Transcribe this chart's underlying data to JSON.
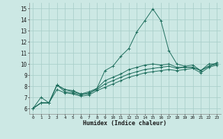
{
  "title": "",
  "xlabel": "Humidex (Indice chaleur)",
  "ylabel": "",
  "background_color": "#cce8e4",
  "grid_color": "#aacfca",
  "line_color": "#1a6b5a",
  "xlim": [
    -0.5,
    23.5
  ],
  "ylim": [
    5.5,
    15.5
  ],
  "xticks": [
    0,
    1,
    2,
    3,
    4,
    5,
    6,
    7,
    8,
    9,
    10,
    11,
    12,
    13,
    14,
    15,
    16,
    17,
    18,
    19,
    20,
    21,
    22,
    23
  ],
  "yticks": [
    6,
    7,
    8,
    9,
    10,
    11,
    12,
    13,
    14,
    15
  ],
  "series": [
    [
      6.0,
      7.0,
      6.5,
      8.1,
      7.7,
      7.6,
      7.3,
      7.3,
      7.8,
      9.4,
      9.8,
      10.7,
      11.4,
      12.9,
      13.9,
      14.95,
      13.9,
      11.2,
      10.0,
      9.8,
      9.9,
      9.4,
      10.0,
      10.0
    ],
    [
      6.0,
      6.5,
      6.5,
      8.1,
      7.7,
      7.5,
      7.3,
      7.5,
      7.8,
      8.5,
      8.8,
      9.1,
      9.5,
      9.7,
      9.9,
      10.0,
      9.9,
      10.0,
      9.7,
      9.7,
      9.7,
      9.4,
      9.8,
      10.0
    ],
    [
      6.0,
      6.5,
      6.5,
      8.1,
      7.5,
      7.4,
      7.2,
      7.4,
      7.7,
      8.2,
      8.5,
      8.8,
      9.1,
      9.3,
      9.5,
      9.6,
      9.7,
      9.8,
      9.6,
      9.7,
      9.7,
      9.4,
      9.8,
      10.1
    ],
    [
      6.0,
      6.5,
      6.5,
      7.7,
      7.4,
      7.3,
      7.1,
      7.2,
      7.6,
      7.9,
      8.2,
      8.5,
      8.8,
      9.0,
      9.2,
      9.3,
      9.4,
      9.5,
      9.4,
      9.5,
      9.6,
      9.2,
      9.7,
      9.9
    ]
  ]
}
